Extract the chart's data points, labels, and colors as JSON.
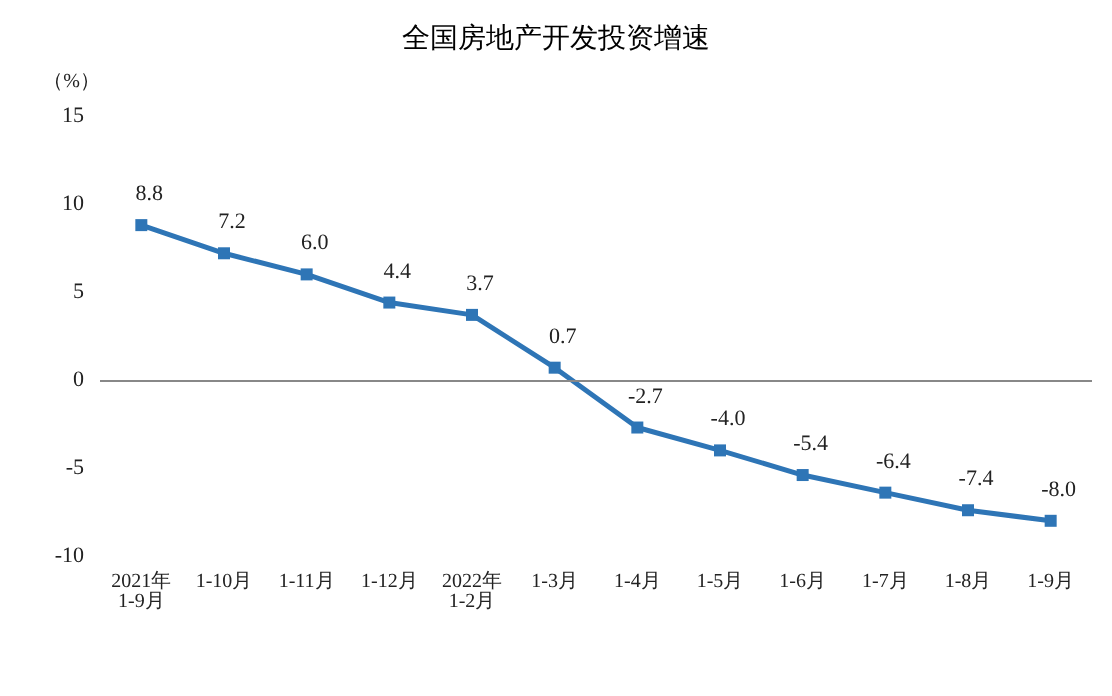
{
  "chart_data": {
    "type": "line",
    "title": "全国房地产开发投资增速",
    "ylabel": "（%）",
    "categories": [
      "2021年\n1-9月",
      "1-10月",
      "1-11月",
      "1-12月",
      "2022年\n1-2月",
      "1-3月",
      "1-4月",
      "1-5月",
      "1-6月",
      "1-7月",
      "1-8月",
      "1-9月"
    ],
    "series": [
      {
        "color": "#2e75b6",
        "values": [
          8.8,
          7.2,
          6.0,
          4.4,
          3.7,
          0.7,
          -2.7,
          -4.0,
          -5.4,
          -6.4,
          -7.4,
          -8.0
        ]
      }
    ],
    "value_labels": [
      "8.8",
      "7.2",
      "6.0",
      "4.4",
      "3.7",
      "0.7",
      "-2.7",
      "-4.0",
      "-5.4",
      "-6.4",
      "-7.4",
      "-8.0"
    ],
    "ylim": [
      -10,
      15
    ],
    "yticks": [
      -10,
      -5,
      0,
      5,
      10,
      15
    ],
    "ref_lines": [
      {
        "axis": "y",
        "value": 0,
        "color": "#888888"
      }
    ],
    "grid": false,
    "marker": "square",
    "line_style": "solid"
  }
}
